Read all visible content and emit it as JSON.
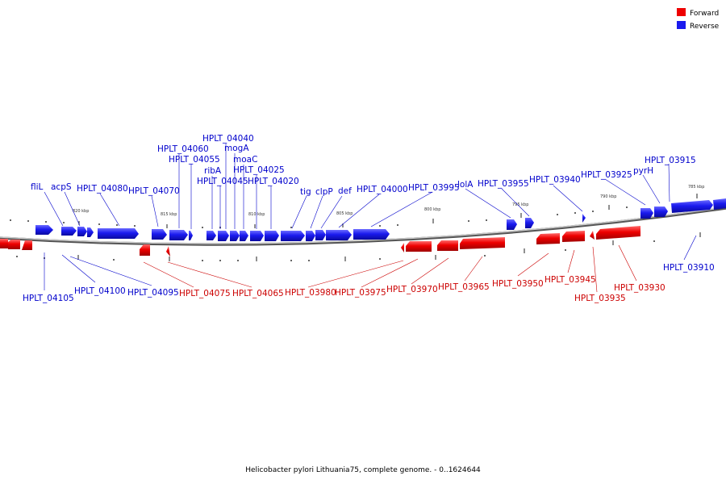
{
  "title": "Helicobacter pylori Lithuania75, complete genome. - 0..1624644",
  "colors": {
    "forward": "#ee0000",
    "reverse": "#1a1aee",
    "forward_text": "#cc0000",
    "reverse_text": "#0000cc",
    "backbone": "#888888"
  },
  "legend": [
    {
      "key": "forward",
      "label": "Forward"
    },
    {
      "key": "reverse",
      "label": "Reverse"
    }
  ],
  "scale_ticks": [
    {
      "label": "820 kbp"
    },
    {
      "label": "815 kbp"
    },
    {
      "label": "810 kbp"
    },
    {
      "label": "805 kbp"
    },
    {
      "label": "800 kbp"
    },
    {
      "label": "795 kbp"
    },
    {
      "label": "790 kbp"
    },
    {
      "label": "785 kbp"
    }
  ],
  "reverse_genes": [
    {
      "name": "fliL"
    },
    {
      "name": "acpS"
    },
    {
      "name": "HPLT_04080"
    },
    {
      "name": "HPLT_04070"
    },
    {
      "name": "HPLT_04060"
    },
    {
      "name": "HPLT_04055"
    },
    {
      "name": "ribA"
    },
    {
      "name": "HPLT_04045"
    },
    {
      "name": "HPLT_04040"
    },
    {
      "name": "mogA"
    },
    {
      "name": "moaC"
    },
    {
      "name": "HPLT_04025"
    },
    {
      "name": "HPLT_04020"
    },
    {
      "name": "tig"
    },
    {
      "name": "clpP"
    },
    {
      "name": "def"
    },
    {
      "name": "HPLT_04000"
    },
    {
      "name": "HPLT_03995"
    },
    {
      "name": "lolA"
    },
    {
      "name": "HPLT_03955"
    },
    {
      "name": "HPLT_03940"
    },
    {
      "name": "HPLT_03925"
    },
    {
      "name": "pyrH"
    },
    {
      "name": "HPLT_03915"
    },
    {
      "name": "HPLT_04105"
    },
    {
      "name": "HPLT_04100"
    },
    {
      "name": "HPLT_04095"
    },
    {
      "name": "HPLT_03910"
    }
  ],
  "forward_genes": [
    {
      "name": "HPLT_04075"
    },
    {
      "name": "HPLT_04065"
    },
    {
      "name": "HPLT_03980"
    },
    {
      "name": "HPLT_03975"
    },
    {
      "name": "HPLT_03970"
    },
    {
      "name": "HPLT_03965"
    },
    {
      "name": "HPLT_03950"
    },
    {
      "name": "HPLT_03945"
    },
    {
      "name": "HPLT_03935"
    },
    {
      "name": "HPLT_03930"
    }
  ]
}
